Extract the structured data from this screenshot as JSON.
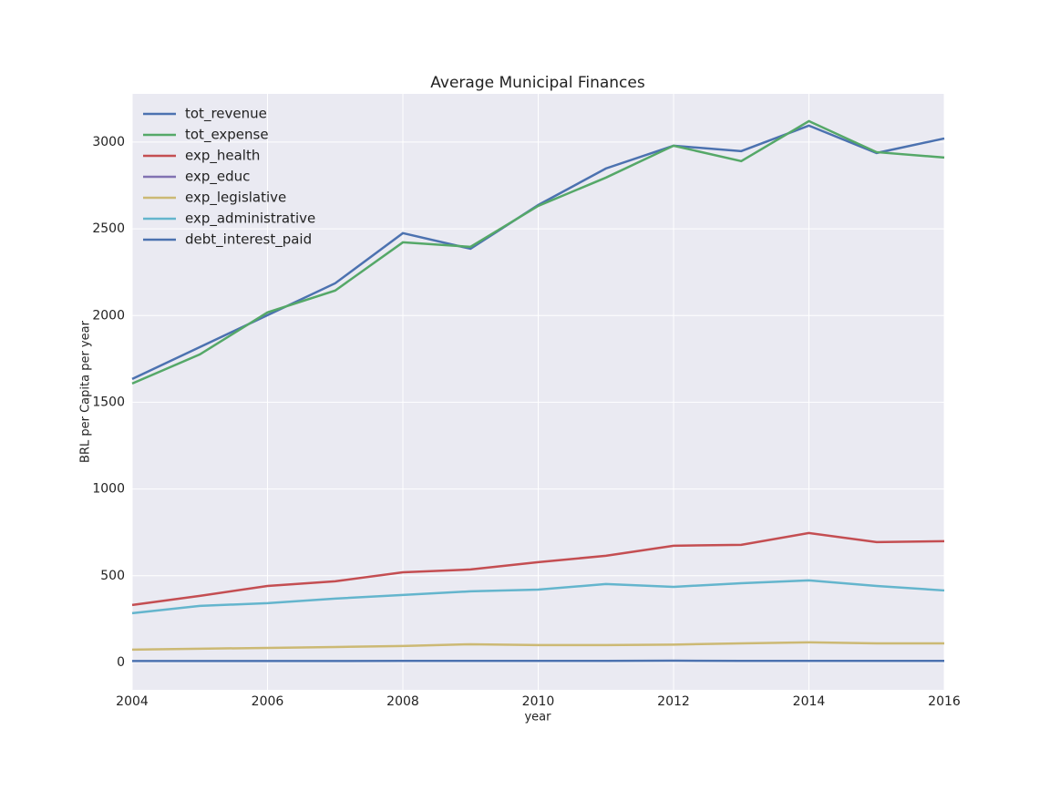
{
  "chart_data": {
    "type": "line",
    "title": "Average Municipal Finances",
    "xlabel": "year",
    "ylabel": "BRL per Capita per year",
    "x": [
      2004,
      2005,
      2006,
      2007,
      2008,
      2009,
      2010,
      2011,
      2012,
      2013,
      2014,
      2015,
      2016
    ],
    "series": [
      {
        "name": "tot_revenue",
        "color": "#4c72b0",
        "values": [
          1634,
          1818,
          2002,
          2186,
          2475,
          2385,
          2637,
          2848,
          2979,
          2948,
          3095,
          2937,
          3021
        ]
      },
      {
        "name": "tot_expense",
        "color": "#55a868",
        "values": [
          1608,
          1776,
          2018,
          2144,
          2422,
          2396,
          2632,
          2795,
          2979,
          2890,
          3121,
          2942,
          2911
        ]
      },
      {
        "name": "exp_health",
        "color": "#c44e52",
        "values": [
          331,
          384,
          441,
          468,
          520,
          536,
          578,
          615,
          673,
          678,
          746,
          694,
          699
        ]
      },
      {
        "name": "exp_educ",
        "color": "#8172b2",
        "values": [
          null,
          null,
          null,
          null,
          null,
          null,
          null,
          null,
          null,
          null,
          null,
          null,
          null
        ]
      },
      {
        "name": "exp_legislative",
        "color": "#ccb974",
        "values": [
          74,
          79,
          84,
          89,
          95,
          105,
          100,
          100,
          103,
          110,
          116,
          110,
          110
        ]
      },
      {
        "name": "exp_administrative",
        "color": "#64b5cd",
        "values": [
          284,
          326,
          342,
          368,
          389,
          410,
          420,
          452,
          436,
          457,
          473,
          441,
          415
        ]
      },
      {
        "name": "debt_interest_paid",
        "color": "#4c72b0",
        "values": [
          8,
          8,
          8,
          8,
          9,
          9,
          9,
          9,
          10,
          9,
          9,
          9,
          9
        ]
      }
    ],
    "xlim": [
      2004,
      2016
    ],
    "xticks": [
      2004,
      2006,
      2008,
      2010,
      2012,
      2014,
      2016
    ],
    "ylim": [
      -158,
      3278
    ],
    "yticks": [
      0,
      500,
      1000,
      1500,
      2000,
      2500,
      3000
    ],
    "grid": true,
    "legend": "upper left"
  }
}
